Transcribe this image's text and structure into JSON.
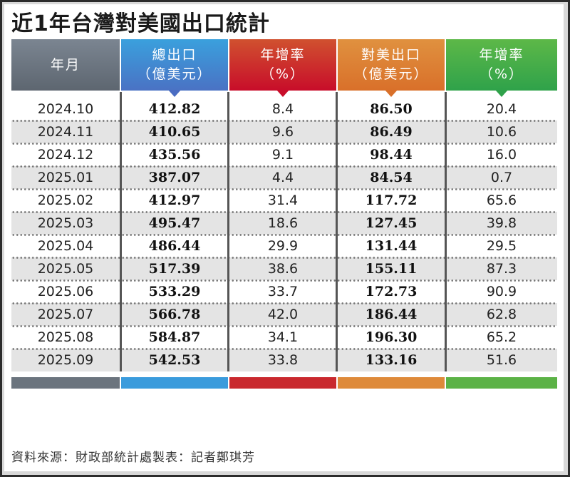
{
  "title": "近1年台灣對美國出口統計",
  "headers": [
    {
      "line1": "年月",
      "line2": ""
    },
    {
      "line1": "總出口",
      "line2": "（億美元）"
    },
    {
      "line1": "年增率",
      "line2": "（%）"
    },
    {
      "line1": "對美出口",
      "line2": "（億美元）"
    },
    {
      "line1": "年增率",
      "line2": "（%）"
    }
  ],
  "colors": {
    "month": "#6b747e",
    "total_export": "#3a9bdc",
    "total_growth": "#c9282d",
    "us_export": "#de8a3a",
    "us_growth": "#5bb246",
    "alt_row": "#e4e4e4"
  },
  "rows": [
    {
      "month": "2024.10",
      "total": "412.82",
      "total_yoy": "8.4",
      "us": "86.50",
      "us_yoy": "20.4"
    },
    {
      "month": "2024.11",
      "total": "410.65",
      "total_yoy": "9.6",
      "us": "86.49",
      "us_yoy": "10.6"
    },
    {
      "month": "2024.12",
      "total": "435.56",
      "total_yoy": "9.1",
      "us": "98.44",
      "us_yoy": "16.0"
    },
    {
      "month": "2025.01",
      "total": "387.07",
      "total_yoy": "4.4",
      "us": "84.54",
      "us_yoy": "0.7"
    },
    {
      "month": "2025.02",
      "total": "412.97",
      "total_yoy": "31.4",
      "us": "117.72",
      "us_yoy": "65.6"
    },
    {
      "month": "2025.03",
      "total": "495.47",
      "total_yoy": "18.6",
      "us": "127.45",
      "us_yoy": "39.8"
    },
    {
      "month": "2025.04",
      "total": "486.44",
      "total_yoy": "29.9",
      "us": "131.44",
      "us_yoy": "29.5"
    },
    {
      "month": "2025.05",
      "total": "517.39",
      "total_yoy": "38.6",
      "us": "155.11",
      "us_yoy": "87.3"
    },
    {
      "month": "2025.06",
      "total": "533.29",
      "total_yoy": "33.7",
      "us": "172.73",
      "us_yoy": "90.9"
    },
    {
      "month": "2025.07",
      "total": "566.78",
      "total_yoy": "42.0",
      "us": "186.44",
      "us_yoy": "62.8"
    },
    {
      "month": "2025.08",
      "total": "584.87",
      "total_yoy": "34.1",
      "us": "196.30",
      "us_yoy": "65.2"
    },
    {
      "month": "2025.09",
      "total": "542.53",
      "total_yoy": "33.8",
      "us": "133.16",
      "us_yoy": "51.6"
    }
  ],
  "footer": "資料來源：財政部統計處製表：記者鄭琪芳",
  "chart_data": {
    "type": "table",
    "title": "近1年台灣對美國出口統計",
    "columns": [
      "年月",
      "總出口（億美元）",
      "年增率（%）",
      "對美出口（億美元）",
      "年增率（%）"
    ],
    "categories": [
      "2024.10",
      "2024.11",
      "2024.12",
      "2025.01",
      "2025.02",
      "2025.03",
      "2025.04",
      "2025.05",
      "2025.06",
      "2025.07",
      "2025.08",
      "2025.09"
    ],
    "series": [
      {
        "name": "總出口（億美元）",
        "values": [
          412.82,
          410.65,
          435.56,
          387.07,
          412.97,
          495.47,
          486.44,
          517.39,
          533.29,
          566.78,
          584.87,
          542.53
        ]
      },
      {
        "name": "總出口年增率（%）",
        "values": [
          8.4,
          9.6,
          9.1,
          4.4,
          31.4,
          18.6,
          29.9,
          38.6,
          33.7,
          42.0,
          34.1,
          33.8
        ]
      },
      {
        "name": "對美出口（億美元）",
        "values": [
          86.5,
          86.49,
          98.44,
          84.54,
          117.72,
          127.45,
          131.44,
          155.11,
          172.73,
          186.44,
          196.3,
          133.16
        ]
      },
      {
        "name": "對美出口年增率（%）",
        "values": [
          20.4,
          10.6,
          16.0,
          0.7,
          65.6,
          39.8,
          29.5,
          87.3,
          90.9,
          62.8,
          65.2,
          51.6
        ]
      }
    ],
    "source": "資料來源：財政部統計處製表：記者鄭琪芳"
  }
}
